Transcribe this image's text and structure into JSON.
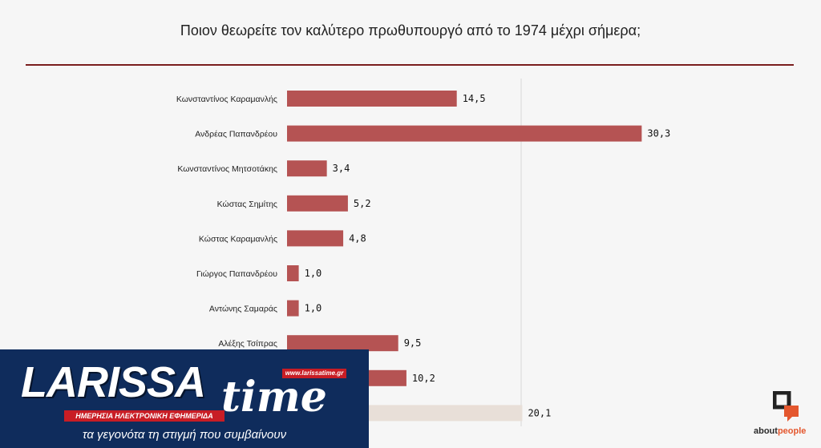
{
  "chart_data": {
    "type": "bar",
    "orientation": "horizontal",
    "title": "Ποιον θεωρείτε τον καλύτερο πρωθυπουργό από το 1974 μέχρι σήμερα;",
    "categories": [
      "Κωνσταντίνος Καραμανλής",
      "Ανδρέας Παπανδρέου",
      "Κωνσταντίνος Μητσοτάκης",
      "Κώστας Σημίτης",
      "Κώστας Καραμανλής",
      "Γιώργος Παπανδρέου",
      "Αντώνης Σαμαράς",
      "Αλέξης Τσίπρας",
      "",
      ""
    ],
    "values": [
      14.5,
      30.3,
      3.4,
      5.2,
      4.8,
      1.0,
      1.0,
      9.5,
      10.2,
      20.1
    ],
    "value_labels": [
      "14,5",
      "30,3",
      "3,4",
      "5,2",
      "4,8",
      "1,0",
      "1,0",
      "9,5",
      "10,2",
      "20,1"
    ],
    "colors": [
      "#b55353",
      "#b55353",
      "#b55353",
      "#b55353",
      "#b55353",
      "#b55353",
      "#b55353",
      "#b55353",
      "#b55353",
      "#e8dfd8"
    ],
    "reference_line": 20,
    "xlim": [
      0,
      35
    ],
    "grid": false,
    "legend": "none",
    "xlabel": "",
    "ylabel": ""
  },
  "brand": {
    "logo_text": "about",
    "logo_accent": "people",
    "logo_icon": "aboutpeople-mark-icon",
    "accent_color": "#e4572e"
  },
  "banner": {
    "name": "LARISSA",
    "name_suffix": "time",
    "url": "www.larissatime.gr",
    "subtitle": "ΗΜΕΡΗΣΙΑ ΗΛΕΚΤΡΟΝΙΚΗ ΕΦΗΜΕΡΙΔΑ",
    "tagline": "τα γεγονότα τη στιγμή που συμβαίνουν",
    "background_color": "#0f2c5c",
    "accent_color": "#c81d25"
  }
}
